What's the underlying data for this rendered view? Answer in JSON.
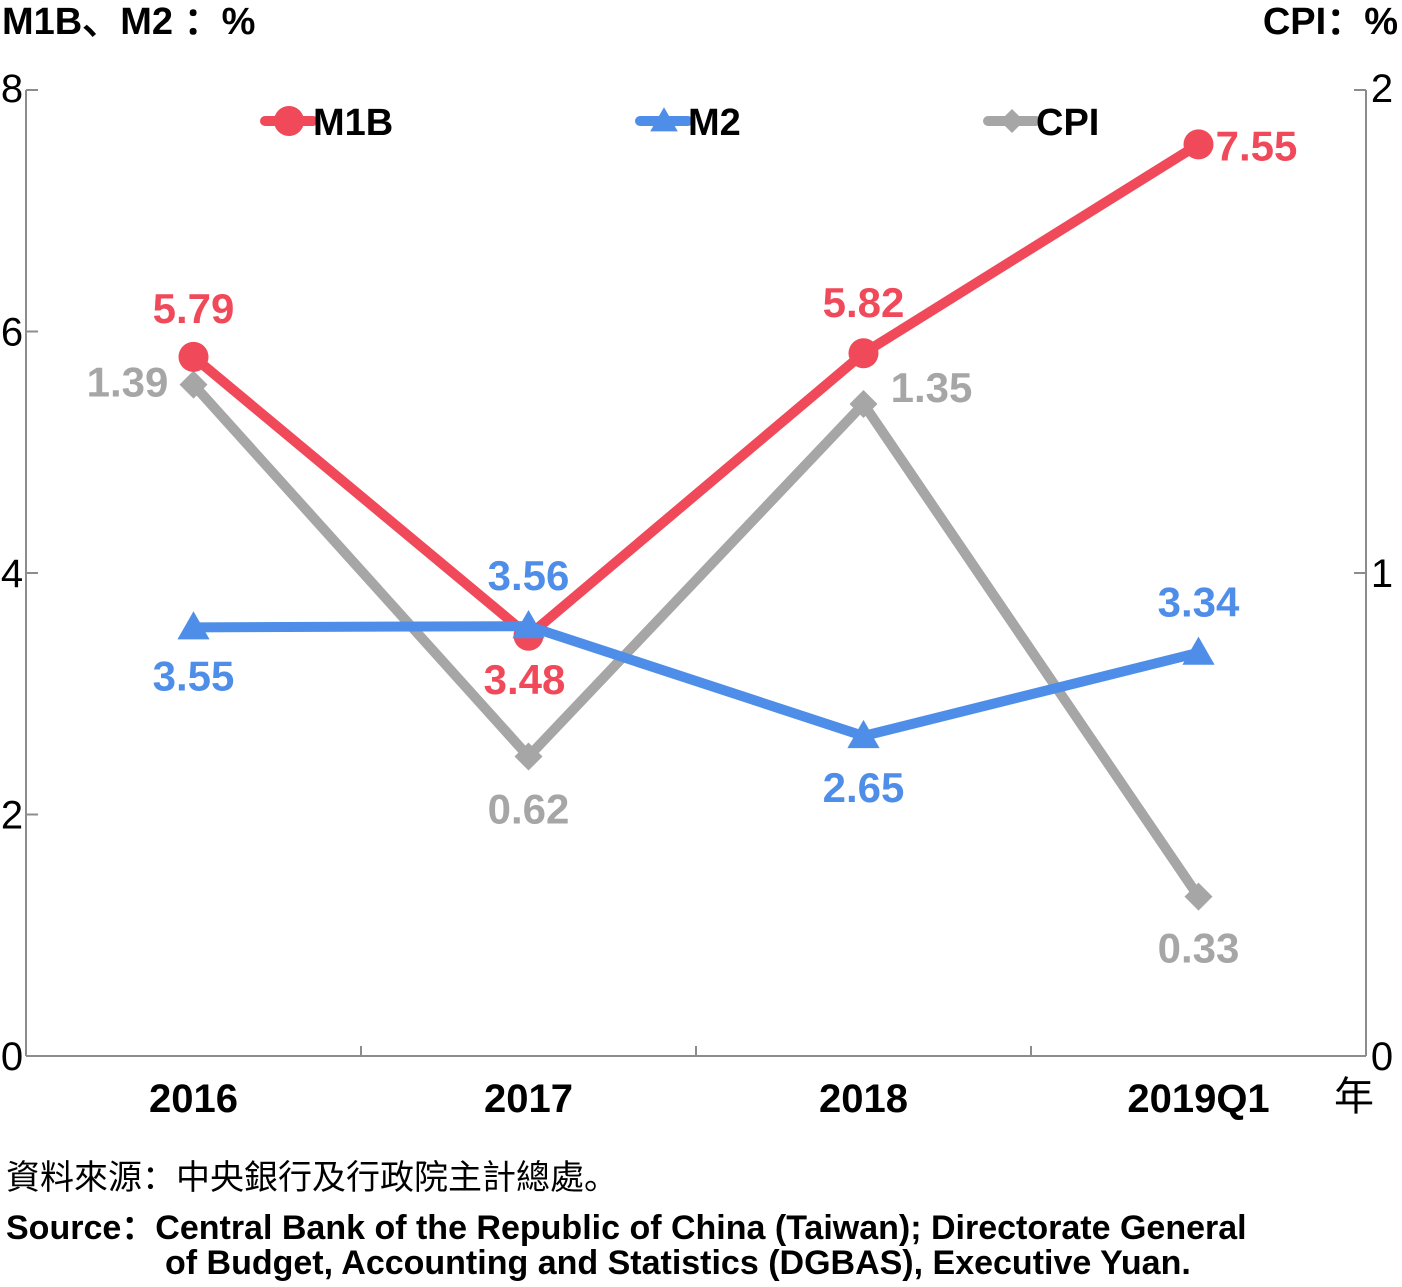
{
  "chart_data": {
    "type": "line",
    "left_axis_label": "M1B、M2 ：%",
    "right_axis_label": "CPI：%",
    "x_unit": "年",
    "categories": [
      "2016",
      "2017",
      "2018",
      "2019Q1"
    ],
    "left_ylim": [
      0,
      8
    ],
    "left_yticks": [
      "0",
      "2",
      "4",
      "6",
      "8"
    ],
    "right_ylim": [
      0,
      2
    ],
    "right_yticks": [
      "0",
      "1",
      "2"
    ],
    "grid": false,
    "legend_placement": "top",
    "series": [
      {
        "name": "M1B",
        "axis": "left",
        "marker": "circle",
        "color": "#f04a5a",
        "values": [
          5.79,
          3.48,
          5.82,
          7.55
        ],
        "labels": [
          "5.79",
          "3.48",
          "5.82",
          "7.55"
        ]
      },
      {
        "name": "M2",
        "axis": "left",
        "marker": "triangle",
        "color": "#4f8ee8",
        "values": [
          3.55,
          3.56,
          2.65,
          3.34
        ],
        "labels": [
          "3.55",
          "3.56",
          "2.65",
          "3.34"
        ]
      },
      {
        "name": "CPI",
        "axis": "right",
        "marker": "diamond",
        "color": "#a6a6a6",
        "values": [
          1.39,
          0.62,
          1.35,
          0.33
        ],
        "labels": [
          "1.39",
          "0.62",
          "1.35",
          "0.33"
        ]
      }
    ]
  },
  "source": {
    "zh": "資料來源：中央銀行及行政院主計總處。",
    "en_line1": "Source：Central Bank of the Republic of China (Taiwan); Directorate General",
    "en_line2": "of Budget, Accounting and Statistics (DGBAS), Executive Yuan."
  }
}
